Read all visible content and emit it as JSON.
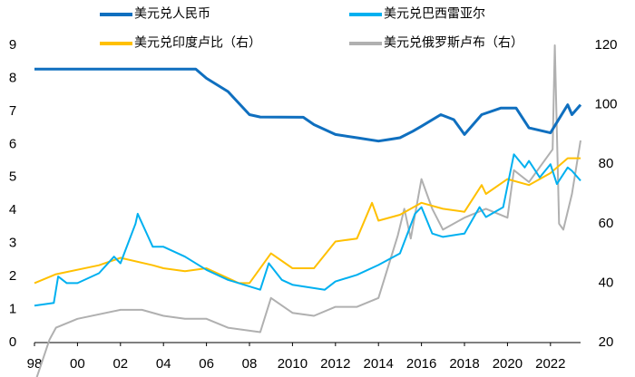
{
  "chart_data": {
    "type": "line",
    "xlim": [
      1998,
      2023.4
    ],
    "xticks": [
      {
        "value": 1998,
        "label": "98"
      },
      {
        "value": 2000,
        "label": "00"
      },
      {
        "value": 2002,
        "label": "02"
      },
      {
        "value": 2004,
        "label": "04"
      },
      {
        "value": 2006,
        "label": "06"
      },
      {
        "value": 2008,
        "label": "08"
      },
      2010,
      2012,
      2014,
      2016,
      2018,
      2020,
      2022
    ],
    "ylim": [
      0,
      9
    ],
    "yticks": [
      0,
      1,
      2,
      3,
      4,
      5,
      6,
      7,
      8,
      9
    ],
    "y2lim": [
      20,
      120
    ],
    "y2ticks": [
      20,
      40,
      60,
      80,
      100,
      120
    ],
    "series": [
      {
        "name": "美元兑人民币",
        "color": "#0f6fbf",
        "x": [
          1998,
          2005.5,
          2006,
          2007,
          2008,
          2008.5,
          2010.5,
          2011,
          2012,
          2013,
          2014,
          2014.5,
          2015,
          2015.6,
          2016,
          2016.9,
          2017.5,
          2018,
          2018.8,
          2019.7,
          2020.4,
          2021,
          2022,
          2022.8,
          2023,
          2023.4
        ],
        "values": [
          8.28,
          8.28,
          8.0,
          7.6,
          6.9,
          6.83,
          6.82,
          6.6,
          6.3,
          6.2,
          6.1,
          6.15,
          6.2,
          6.4,
          6.55,
          6.9,
          6.75,
          6.3,
          6.9,
          7.1,
          7.1,
          6.5,
          6.35,
          7.2,
          6.9,
          7.2
        ]
      },
      {
        "name": "美元兑巴西雷亚尔",
        "color": "#00b0f0",
        "x": [
          1998,
          1998.9,
          1999.1,
          1999.5,
          2000,
          2001,
          2001.7,
          2002,
          2002.7,
          2002.8,
          2003.5,
          2004,
          2005,
          2006,
          2007,
          2008.5,
          2008.9,
          2009.5,
          2010,
          2011.5,
          2012,
          2013,
          2014,
          2015,
          2015.7,
          2016,
          2016.5,
          2017,
          2018,
          2018.7,
          2019,
          2019.8,
          2020.3,
          2020.8,
          2021,
          2021.5,
          2022,
          2022.3,
          2022.8,
          2023,
          2023.4
        ],
        "values": [
          1.12,
          1.2,
          2.0,
          1.8,
          1.8,
          2.1,
          2.6,
          2.4,
          3.6,
          3.9,
          2.9,
          2.9,
          2.6,
          2.2,
          1.9,
          1.6,
          2.4,
          1.9,
          1.75,
          1.6,
          1.85,
          2.05,
          2.35,
          2.7,
          3.9,
          4.1,
          3.3,
          3.2,
          3.3,
          4.1,
          3.8,
          4.1,
          5.7,
          5.3,
          5.5,
          5.0,
          5.4,
          4.8,
          5.3,
          5.2,
          4.9
        ]
      },
      {
        "name": "美元兑印度卢比（右）",
        "color": "#ffc000",
        "axis": "y2",
        "x": [
          1998,
          1999,
          2001,
          2002,
          2003.5,
          2004,
          2005,
          2006,
          2007.5,
          2008,
          2009,
          2010,
          2011,
          2012,
          2013,
          2013.7,
          2014,
          2015,
          2016,
          2017,
          2018,
          2018.8,
          2019,
          2020,
          2021,
          2022,
          2022.8,
          2023,
          2023.4
        ],
        "values": [
          40,
          43,
          46,
          48.5,
          46,
          45,
          44,
          45,
          40,
          40,
          50,
          45,
          45,
          54,
          55,
          67,
          61,
          63,
          67,
          65,
          64,
          73,
          70,
          75,
          73,
          77,
          82,
          82,
          82
        ]
      },
      {
        "name": "美元兑俄罗斯卢布（右）",
        "color": "#b0b0b0",
        "axis": "y2",
        "x": [
          1998,
          1998.7,
          1999,
          2000,
          2002,
          2003,
          2004,
          2005,
          2006,
          2007,
          2008.5,
          2009,
          2010,
          2011,
          2012,
          2013,
          2014,
          2014.9,
          2015.2,
          2015.5,
          2016,
          2016.5,
          2017,
          2018,
          2019,
          2020,
          2020.3,
          2021,
          2022.1,
          2022.2,
          2022.4,
          2022.6,
          2023,
          2023.4
        ],
        "values": [
          6,
          21,
          25,
          28,
          31,
          31,
          29,
          28,
          28,
          25,
          23.5,
          35,
          30,
          29,
          32,
          32,
          35,
          56,
          65,
          55,
          75,
          65,
          58,
          62,
          65,
          62,
          78,
          74,
          85,
          120,
          60,
          58,
          70,
          88
        ]
      }
    ]
  }
}
